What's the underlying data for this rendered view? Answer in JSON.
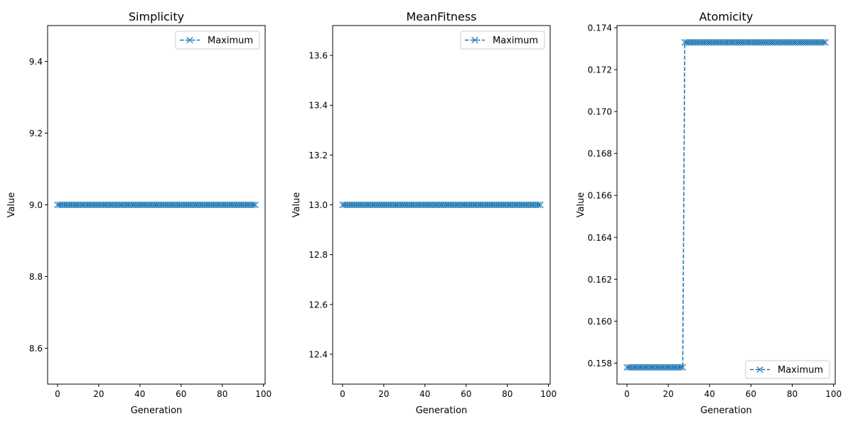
{
  "chart_data": [
    {
      "type": "line",
      "title": "Simplicity",
      "xlabel": "Generation",
      "ylabel": "Value",
      "xlim": [
        -4.8,
        100.8
      ],
      "ylim": [
        8.5,
        9.5
      ],
      "xticks": [
        0,
        20,
        40,
        60,
        80,
        100
      ],
      "yticks": [
        8.6,
        8.8,
        9.0,
        9.2,
        9.4
      ],
      "ytick_labels": [
        "8.6",
        "8.8",
        "9.0",
        "9.2",
        "9.4"
      ],
      "legend": "upper right",
      "color": "#1f77b4",
      "marker": "x",
      "linestyle": "dashed",
      "series": [
        {
          "name": "Maximum",
          "segments": [
            {
              "x_from": 0,
              "x_to": 96,
              "y": 9.0
            }
          ]
        }
      ]
    },
    {
      "type": "line",
      "title": "MeanFitness",
      "xlabel": "Generation",
      "ylabel": "Value",
      "xlim": [
        -4.8,
        100.8
      ],
      "ylim": [
        12.28,
        13.72
      ],
      "xticks": [
        0,
        20,
        40,
        60,
        80,
        100
      ],
      "yticks": [
        12.4,
        12.6,
        12.8,
        13.0,
        13.2,
        13.4,
        13.6
      ],
      "ytick_labels": [
        "12.4",
        "12.6",
        "12.8",
        "13.0",
        "13.2",
        "13.4",
        "13.6"
      ],
      "legend": "upper right",
      "color": "#1f77b4",
      "marker": "x",
      "linestyle": "dashed",
      "series": [
        {
          "name": "Maximum",
          "segments": [
            {
              "x_from": 0,
              "x_to": 96,
              "y": 13.0
            }
          ]
        }
      ]
    },
    {
      "type": "line",
      "title": "Atomicity",
      "xlabel": "Generation",
      "ylabel": "Value",
      "xlim": [
        -4.8,
        100.8
      ],
      "ylim": [
        0.157,
        0.1741
      ],
      "xticks": [
        0,
        20,
        40,
        60,
        80,
        100
      ],
      "yticks": [
        0.158,
        0.16,
        0.162,
        0.164,
        0.166,
        0.168,
        0.17,
        0.172,
        0.174
      ],
      "ytick_labels": [
        "0.158",
        "0.160",
        "0.162",
        "0.164",
        "0.166",
        "0.168",
        "0.170",
        "0.172",
        "0.174"
      ],
      "legend": "lower right",
      "color": "#1f77b4",
      "marker": "x",
      "linestyle": "dashed",
      "series": [
        {
          "name": "Maximum",
          "segments": [
            {
              "x_from": 0,
              "x_to": 27,
              "y": 0.1578
            },
            {
              "x_from": 28,
              "x_to": 96,
              "y": 0.1733
            }
          ]
        }
      ]
    }
  ]
}
